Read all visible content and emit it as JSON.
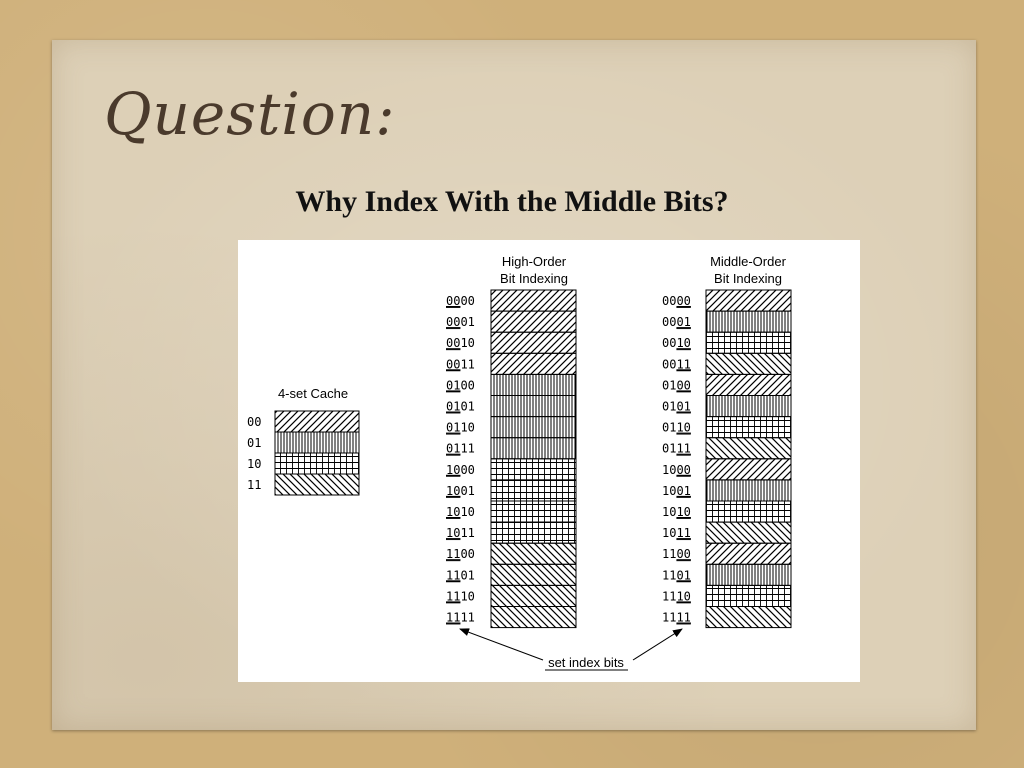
{
  "slide": {
    "title": "Question:",
    "subtitle": "Why Index With the Middle Bits?"
  },
  "colors": {
    "background": "#cfb07a",
    "paper": "#ddd0b7",
    "title": "#4a3a2c"
  },
  "diagram": {
    "cache": {
      "label": "4-set Cache",
      "sets": [
        {
          "index": "00",
          "pattern": "diag-right-icon"
        },
        {
          "index": "01",
          "pattern": "vertical-lines-icon"
        },
        {
          "index": "10",
          "pattern": "grid-icon"
        },
        {
          "index": "11",
          "pattern": "diag-left-icon"
        }
      ]
    },
    "high_order": {
      "label_line1": "High-Order",
      "label_line2": "Bit Indexing",
      "rows": [
        {
          "idx": "00",
          "rest": "00"
        },
        {
          "idx": "00",
          "rest": "01"
        },
        {
          "idx": "00",
          "rest": "10"
        },
        {
          "idx": "00",
          "rest": "11"
        },
        {
          "idx": "01",
          "rest": "00"
        },
        {
          "idx": "01",
          "rest": "01"
        },
        {
          "idx": "01",
          "rest": "10"
        },
        {
          "idx": "01",
          "rest": "11"
        },
        {
          "idx": "10",
          "rest": "00"
        },
        {
          "idx": "10",
          "rest": "01"
        },
        {
          "idx": "10",
          "rest": "10"
        },
        {
          "idx": "10",
          "rest": "11"
        },
        {
          "idx": "11",
          "rest": "00"
        },
        {
          "idx": "11",
          "rest": "01"
        },
        {
          "idx": "11",
          "rest": "10"
        },
        {
          "idx": "11",
          "rest": "11"
        }
      ]
    },
    "middle_order": {
      "label_line1": "Middle-Order",
      "label_line2": "Bit Indexing",
      "rows": [
        {
          "rest": "00",
          "idx": "00"
        },
        {
          "rest": "00",
          "idx": "01"
        },
        {
          "rest": "00",
          "idx": "10"
        },
        {
          "rest": "00",
          "idx": "11"
        },
        {
          "rest": "01",
          "idx": "00"
        },
        {
          "rest": "01",
          "idx": "01"
        },
        {
          "rest": "01",
          "idx": "10"
        },
        {
          "rest": "01",
          "idx": "11"
        },
        {
          "rest": "10",
          "idx": "00"
        },
        {
          "rest": "10",
          "idx": "01"
        },
        {
          "rest": "10",
          "idx": "10"
        },
        {
          "rest": "10",
          "idx": "11"
        },
        {
          "rest": "11",
          "idx": "00"
        },
        {
          "rest": "11",
          "idx": "01"
        },
        {
          "rest": "11",
          "idx": "10"
        },
        {
          "rest": "11",
          "idx": "11"
        }
      ]
    },
    "annotation": "set index bits"
  }
}
